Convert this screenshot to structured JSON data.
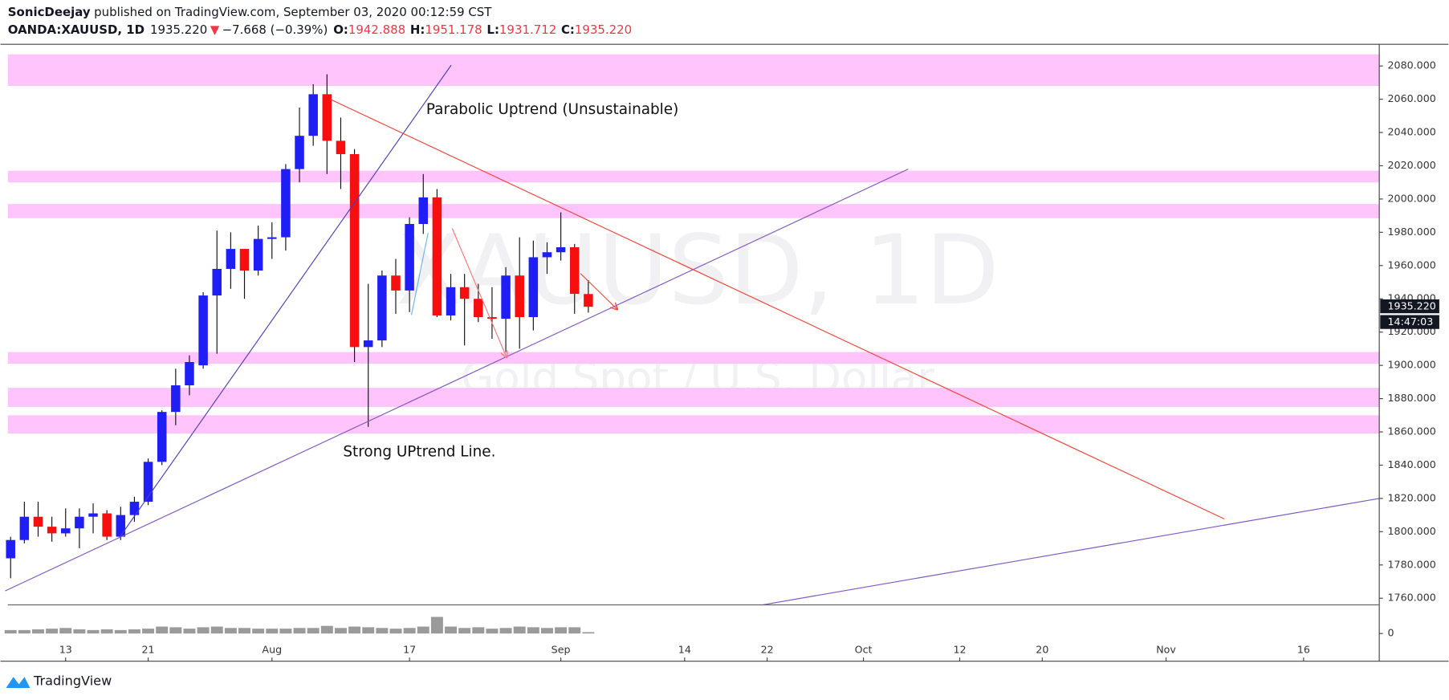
{
  "header": {
    "publisher": "SonicDeejay",
    "published": "published on TradingView.com, September 03, 2020 00:12:59 CST",
    "symbol": "OANDA:XAUUSD, 1D",
    "last": "1935.220",
    "change_arrow": "▼",
    "change": "−7.668 (−0.39%)",
    "o_label": "O:",
    "o": "1942.888",
    "h_label": "H:",
    "h": "1951.178",
    "l_label": "L:",
    "l": "1931.712",
    "c_label": "C:",
    "c": "1935.220"
  },
  "chart_data": {
    "type": "candlestick",
    "x": [
      0,
      1,
      2,
      3,
      4,
      5,
      6,
      7,
      8,
      9,
      10,
      11,
      12,
      13,
      14,
      15,
      16,
      17,
      18,
      19,
      20,
      21,
      22,
      23,
      24,
      25,
      26,
      27,
      28,
      29,
      30,
      31,
      32,
      33,
      34,
      35,
      36,
      37,
      38,
      39,
      40,
      41,
      42
    ],
    "open": [
      1784,
      1795,
      1809,
      1803,
      1799,
      1802,
      1809,
      1811,
      1797,
      1810,
      1818,
      1842,
      1872,
      1888,
      1900,
      1942,
      1958,
      1970,
      1957,
      1976,
      1977,
      2018,
      2038,
      2063,
      2035,
      2027,
      1911,
      1915,
      1954,
      1945,
      1985,
      2001,
      1930,
      1947,
      1940,
      1929,
      1928,
      1954,
      1929,
      1965,
      1968,
      1971,
      1942.888
    ],
    "high": [
      1797,
      1818,
      1818,
      1809,
      1814,
      1814,
      1817,
      1813,
      1815,
      1821,
      1844,
      1873,
      1898,
      1906,
      1944,
      1981,
      1980,
      1970,
      1984,
      1986,
      2021,
      2055,
      2069,
      2075,
      2049,
      2030,
      1949,
      1957,
      1964,
      1989,
      2015,
      2006,
      1955,
      1955,
      1949,
      1947,
      1959,
      1977,
      1975,
      1974,
      1992,
      1973,
      1951.178
    ],
    "low": [
      1772,
      1793,
      1797,
      1794,
      1797,
      1790,
      1799,
      1795,
      1795,
      1806,
      1816,
      1840,
      1864,
      1882,
      1898,
      1907,
      1946,
      1940,
      1954,
      1964,
      1969,
      2010,
      2032,
      2015,
      2006,
      1902,
      1863,
      1911,
      1931,
      1932,
      1979,
      1929,
      1927,
      1912,
      1926,
      1916,
      1908,
      1910,
      1921,
      1955,
      1963,
      1931,
      1931.712
    ],
    "close": [
      1795,
      1809,
      1803,
      1799,
      1802,
      1809,
      1811,
      1797,
      1810,
      1818,
      1842,
      1872,
      1888,
      1902,
      1942,
      1958,
      1970,
      1957,
      1976,
      1977,
      2018,
      2038,
      2063,
      2035,
      2027,
      1911,
      1915,
      1954,
      1945,
      1985,
      2001,
      1930,
      1947,
      1940,
      1929,
      1928,
      1954,
      1929,
      1965,
      1968,
      1971,
      1943,
      1935.22
    ],
    "up_color": "#1f1ff5",
    "down_color": "#f50f0f",
    "wick_color": "#111111",
    "xlim": [
      -0.2,
      99.5
    ],
    "xticks": [
      {
        "value": 4,
        "label": "13"
      },
      {
        "value": 10,
        "label": "21"
      },
      {
        "value": 19,
        "label": "Aug"
      },
      {
        "value": 29,
        "label": "17"
      },
      {
        "value": 40,
        "label": "Sep"
      },
      {
        "value": 49,
        "label": "14"
      },
      {
        "value": 55,
        "label": "22"
      },
      {
        "value": 62,
        "label": "Oct"
      },
      {
        "value": 69,
        "label": "12"
      },
      {
        "value": 75,
        "label": "20"
      },
      {
        "value": 84,
        "label": "Nov"
      },
      {
        "value": 94,
        "label": "16"
      }
    ],
    "ylim": [
      1756,
      2093
    ],
    "yticks": [
      {
        "value": 1760,
        "label": "1760.000"
      },
      {
        "value": 1780,
        "label": "1780.000"
      },
      {
        "value": 1800,
        "label": "1800.000"
      },
      {
        "value": 1820,
        "label": "1820.000"
      },
      {
        "value": 1840,
        "label": "1840.000"
      },
      {
        "value": 1860,
        "label": "1860.000"
      },
      {
        "value": 1880,
        "label": "1880.000"
      },
      {
        "value": 1900,
        "label": "1900.000"
      },
      {
        "value": 1920,
        "label": "1920.000"
      },
      {
        "value": 1940,
        "label": "1940.000"
      },
      {
        "value": 1960,
        "label": "1960.000"
      },
      {
        "value": 1980,
        "label": "1980.000"
      },
      {
        "value": 2000,
        "label": "2000.000"
      },
      {
        "value": 2020,
        "label": "2020.000"
      },
      {
        "value": 2040,
        "label": "2040.000"
      },
      {
        "value": 2060,
        "label": "2060.000"
      },
      {
        "value": 2080,
        "label": "2080.000"
      }
    ],
    "volume": {
      "values": [
        5,
        5,
        6,
        7,
        8,
        6,
        5,
        6,
        5,
        6,
        7,
        10,
        9,
        7,
        9,
        10,
        8,
        8,
        7,
        7,
        7,
        8,
        8,
        11,
        8,
        10,
        9,
        8,
        7,
        8,
        10,
        24,
        10,
        8,
        9,
        7,
        8,
        10,
        9,
        8,
        9,
        9,
        2
      ],
      "color": "#9a9a9a",
      "ylim": [
        0,
        40
      ],
      "yticks": [
        0
      ]
    },
    "zones": [
      {
        "from": 2068,
        "to": 2087,
        "color": "#ffc4fb"
      },
      {
        "from": 2010,
        "to": 2017,
        "color": "#ffc4fb"
      },
      {
        "from": 1988.5,
        "to": 1997,
        "color": "#ffc4fb"
      },
      {
        "from": 1901,
        "to": 1908,
        "color": "#ffc4fb"
      },
      {
        "from": 1875,
        "to": 1886.5,
        "color": "#ffc4fb"
      },
      {
        "from": 1859,
        "to": 1870,
        "color": "#ffc4fb"
      }
    ],
    "lines": [
      {
        "x": [
          7.92,
          32.03
        ],
        "y": [
          1796.6,
          2080.5
        ],
        "color": "#4b3fbf",
        "arrow": false
      },
      {
        "x": [
          -0.4,
          65.26
        ],
        "y": [
          1764.4,
          2018
        ],
        "color": "#7e57c2",
        "arrow": false
      },
      {
        "x": [
          54.65,
          99.5
        ],
        "y": [
          1756,
          1820
        ],
        "color": "#7e57c2",
        "arrow": false
      },
      {
        "x": [
          23.23,
          88.23
        ],
        "y": [
          2060,
          1807.7
        ],
        "color": "#f44336",
        "arrow": false
      },
      {
        "x": [
          32.1,
          36.06
        ],
        "y": [
          1982.4,
          1904.7
        ],
        "color": "#f77",
        "arrow": true
      },
      {
        "x": [
          41.43,
          44.11
        ],
        "y": [
          1955.2,
          1933.6
        ],
        "color": "#f44336",
        "arrow": true
      },
      {
        "x": [
          29.14,
          30.35
        ],
        "y": [
          1930.3,
          1979.6
        ],
        "color": "#64b5f6",
        "arrow": false
      }
    ],
    "annotations": [
      "Parabolic Uptrend (Unsustainable)",
      "Strong UPtrend Line."
    ],
    "watermark": {
      "symbol": "XAUUSD, 1D",
      "description": "Gold Spot / U.S. Dollar"
    },
    "last_price_label": "1935.220",
    "countdown": "14:47:03"
  },
  "footer": {
    "brand": "TradingView"
  }
}
